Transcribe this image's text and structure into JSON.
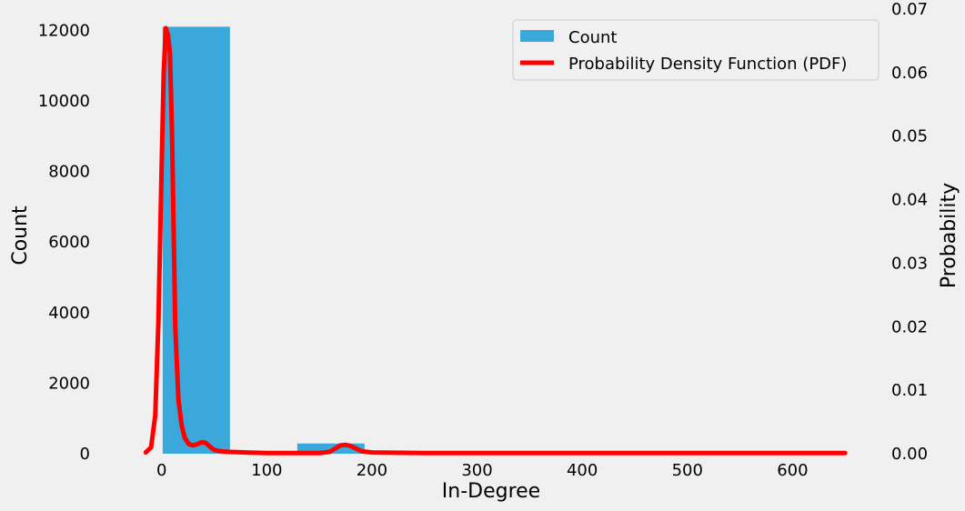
{
  "chart_data": {
    "type": "bar",
    "title": "",
    "xlabel": "In-Degree",
    "ylabel": "Count",
    "y2label": "Probability",
    "xlim": [
      -30,
      655
    ],
    "ylim": [
      0,
      12600
    ],
    "y2lim": [
      0,
      0.07
    ],
    "grid": false,
    "legend_position": "top-right",
    "x_ticks": [
      0,
      100,
      200,
      300,
      400,
      500,
      600
    ],
    "y_ticks": [
      0,
      2000,
      4000,
      6000,
      8000,
      10000,
      12000
    ],
    "y2_ticks": [
      "0.00",
      "0.01",
      "0.02",
      "0.03",
      "0.04",
      "0.05",
      "0.06",
      "0.07"
    ],
    "histogram": {
      "name": "Count",
      "color": "#3ba8db",
      "bins": [
        {
          "x0": 1,
          "x1": 65,
          "value": 12100
        },
        {
          "x0": 65,
          "x1": 129,
          "value": 8
        },
        {
          "x0": 129,
          "x1": 193,
          "value": 290
        },
        {
          "x0": 193,
          "x1": 257,
          "value": 3
        },
        {
          "x0": 257,
          "x1": 321,
          "value": 2
        },
        {
          "x0": 321,
          "x1": 385,
          "value": 2
        },
        {
          "x0": 385,
          "x1": 449,
          "value": 1
        },
        {
          "x0": 449,
          "x1": 513,
          "value": 1
        },
        {
          "x0": 513,
          "x1": 577,
          "value": 1
        },
        {
          "x0": 577,
          "x1": 641,
          "value": 1
        }
      ]
    },
    "pdf": {
      "name": "Probability Density Function (PDF)",
      "color": "#ff0000",
      "x": [
        -15,
        -10,
        -6,
        -3,
        0,
        2,
        4,
        6,
        8,
        10,
        13,
        16,
        19,
        22,
        26,
        30,
        34,
        38,
        42,
        46,
        50,
        56,
        62,
        80,
        100,
        130,
        150,
        160,
        165,
        170,
        175,
        180,
        185,
        190,
        200,
        250,
        300,
        400,
        500,
        650
      ],
      "y": [
        0.0002,
        0.001,
        0.006,
        0.021,
        0.045,
        0.06,
        0.067,
        0.066,
        0.063,
        0.05,
        0.02,
        0.0085,
        0.0045,
        0.0025,
        0.0015,
        0.0013,
        0.0015,
        0.0018,
        0.0017,
        0.0011,
        0.0006,
        0.0004,
        0.0003,
        0.0002,
        0.0001,
        0.0001,
        0.0001,
        0.0003,
        0.0008,
        0.0013,
        0.0014,
        0.0012,
        0.0008,
        0.0004,
        0.0002,
        0.0001,
        0.0001,
        0.0001,
        0.0001,
        0.0001
      ]
    }
  }
}
